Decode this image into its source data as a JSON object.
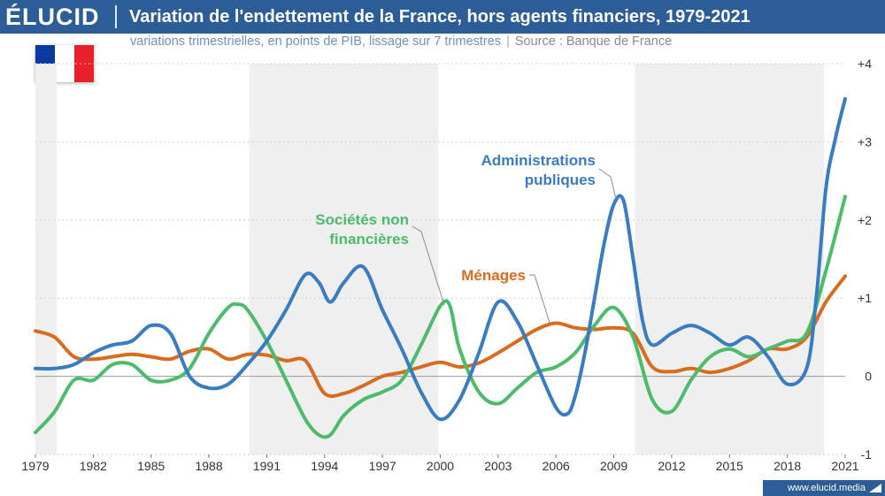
{
  "header": {
    "brand": "ÉLUCID",
    "title": "Variation de l'endettement de la France, hors agents financiers, 1979-2021"
  },
  "subtitle": {
    "main": "variations trimestrielles, en points de PIB, lissage sur 7 trimestres",
    "separator": "|",
    "source": "Source : Banque de France"
  },
  "flag": {
    "colors": [
      "#0a3a9e",
      "#ffffff",
      "#e8202a"
    ]
  },
  "footer": {
    "url": "www.elucid.media"
  },
  "colors": {
    "brand": "#2d5d97",
    "grid": "#cfcfcf",
    "band": "#efefef"
  },
  "chart_data": {
    "type": "line",
    "title": "Variation de l'endettement de la France, hors agents financiers, 1979-2021",
    "subtitle": "variations trimestrielles, en points de PIB, lissage sur 7 trimestres",
    "xlim": [
      1979,
      2021
    ],
    "ylim": [
      -1,
      4
    ],
    "x_ticks": [
      "1979",
      "1982",
      "1985",
      "1988",
      "1991",
      "1994",
      "1997",
      "2000",
      "2003",
      "2006",
      "2009",
      "2012",
      "2015",
      "2018",
      "2021"
    ],
    "y_ticks": [
      {
        "value": 4,
        "label": "+4"
      },
      {
        "value": 3,
        "label": "+3"
      },
      {
        "value": 2,
        "label": "+2"
      },
      {
        "value": 1,
        "label": "+1"
      },
      {
        "value": 0,
        "label": "0"
      },
      {
        "value": -1,
        "label": "-1"
      }
    ],
    "grid": "horizontal",
    "shaded_periods": [
      [
        1979,
        1980.1
      ],
      [
        1990.1,
        1999.9
      ],
      [
        2010.1,
        2019.9
      ]
    ],
    "series": [
      {
        "name": "Administrations publiques",
        "label_lines": [
          "Administrations",
          "publiques"
        ],
        "color": "#3a7cc2",
        "x": [
          1979,
          1980,
          1981,
          1982,
          1983,
          1984,
          1985,
          1986,
          1987,
          1988,
          1989,
          1990,
          1991,
          1992,
          1993,
          1993.7,
          1994.3,
          1995,
          1996,
          1997,
          1998,
          1999,
          2000,
          2001,
          2002,
          2003,
          2004,
          2005,
          2006,
          2006.6,
          2007,
          2007.5,
          2008,
          2008.5,
          2009,
          2009.5,
          2010,
          2010.5,
          2011,
          2012,
          2013,
          2014,
          2015,
          2016,
          2017,
          2018,
          2019,
          2019.5,
          2020,
          2020.5,
          2021
        ],
        "y": [
          0.1,
          0.1,
          0.15,
          0.3,
          0.4,
          0.45,
          0.65,
          0.55,
          0.0,
          -0.15,
          -0.1,
          0.15,
          0.45,
          0.85,
          1.3,
          1.2,
          0.95,
          1.2,
          1.4,
          0.85,
          0.35,
          -0.2,
          -0.55,
          -0.3,
          0.3,
          0.95,
          0.7,
          0.15,
          -0.4,
          -0.48,
          -0.25,
          0.3,
          1.0,
          1.7,
          2.2,
          2.25,
          1.5,
          0.7,
          0.4,
          0.55,
          0.65,
          0.55,
          0.4,
          0.5,
          0.25,
          -0.1,
          0.1,
          1.0,
          2.4,
          3.05,
          3.55
        ]
      },
      {
        "name": "Sociétés non financières",
        "label_lines": [
          "Sociétés non",
          "financières"
        ],
        "color": "#4cbc6a",
        "x": [
          1979,
          1980,
          1981,
          1982,
          1983,
          1984,
          1985,
          1986,
          1987,
          1988,
          1989,
          1989.5,
          1990,
          1991,
          1992,
          1993,
          1993.7,
          1994.3,
          1995,
          1996,
          1997,
          1998,
          1999,
          2000,
          2000.5,
          2001,
          2002,
          2003,
          2004,
          2005,
          2006,
          2007,
          2008,
          2009,
          2010,
          2011,
          2012,
          2013,
          2014,
          2015,
          2016,
          2017,
          2018,
          2019,
          2020,
          2021
        ],
        "y": [
          -0.72,
          -0.45,
          -0.05,
          -0.05,
          0.15,
          0.15,
          -0.05,
          -0.05,
          0.1,
          0.55,
          0.88,
          0.92,
          0.85,
          0.45,
          -0.05,
          -0.55,
          -0.75,
          -0.75,
          -0.5,
          -0.3,
          -0.2,
          -0.05,
          0.4,
          0.9,
          0.9,
          0.35,
          -0.2,
          -0.35,
          -0.15,
          0.05,
          0.12,
          0.3,
          0.65,
          0.88,
          0.5,
          -0.3,
          -0.45,
          -0.05,
          0.25,
          0.35,
          0.25,
          0.35,
          0.45,
          0.55,
          1.35,
          2.3
        ]
      },
      {
        "name": "Ménages",
        "label_lines": [
          "Ménages"
        ],
        "color": "#d96b1f",
        "x": [
          1979,
          1980,
          1981,
          1982,
          1983,
          1984,
          1985,
          1986,
          1987,
          1988,
          1989,
          1990,
          1991,
          1992,
          1993,
          1994,
          1995,
          1996,
          1997,
          1998,
          1999,
          2000,
          2001,
          2002,
          2003,
          2004,
          2005,
          2006,
          2007,
          2008,
          2009,
          2010,
          2011,
          2012,
          2013,
          2014,
          2015,
          2016,
          2017,
          2018,
          2019,
          2020,
          2021
        ],
        "y": [
          0.58,
          0.5,
          0.25,
          0.22,
          0.25,
          0.28,
          0.25,
          0.22,
          0.32,
          0.35,
          0.22,
          0.28,
          0.27,
          0.2,
          0.2,
          -0.22,
          -0.22,
          -0.12,
          0.0,
          0.05,
          0.12,
          0.18,
          0.12,
          0.17,
          0.3,
          0.45,
          0.6,
          0.68,
          0.62,
          0.6,
          0.62,
          0.55,
          0.12,
          0.06,
          0.1,
          0.05,
          0.1,
          0.2,
          0.35,
          0.35,
          0.5,
          0.95,
          1.28
        ]
      }
    ]
  }
}
